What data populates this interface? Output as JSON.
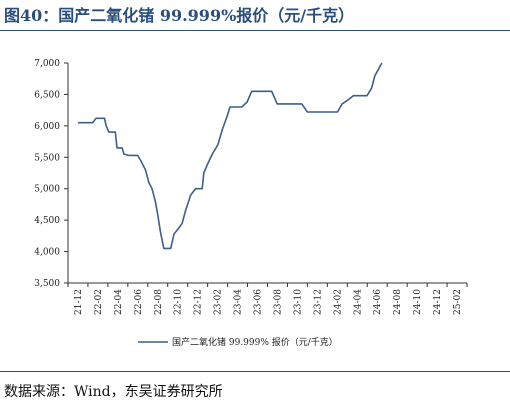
{
  "header": {
    "title": "图40：国产二氧化锗 99.999%报价（元/千克）"
  },
  "footer": {
    "source": "数据来源：Wind，东吴证券研究所"
  },
  "colors": {
    "line": "#3c5f8e",
    "title": "#2a4f7d"
  },
  "chart_data": {
    "type": "line",
    "title": "",
    "xlabel": "",
    "ylabel": "",
    "ylim": [
      3500,
      7000
    ],
    "yticks": [
      "3,500",
      "4,000",
      "4,500",
      "5,000",
      "5,500",
      "6,000",
      "6,500",
      "7,000"
    ],
    "categories": [
      "21-12",
      "22-02",
      "22-04",
      "22-06",
      "22-08",
      "22-10",
      "22-12",
      "23-02",
      "23-04",
      "23-06",
      "23-08",
      "23-10",
      "23-12",
      "24-02",
      "24-04",
      "24-06",
      "24-08",
      "24-10",
      "24-12",
      "25-02"
    ],
    "legend_position": "bottom",
    "series": [
      {
        "name": "国产二氧化锗 99.999% 报价（元/千克）",
        "points": [
          [
            "2021-12-01",
            6050
          ],
          [
            "2022-01-15",
            6050
          ],
          [
            "2022-01-25",
            6120
          ],
          [
            "2022-02-20",
            6120
          ],
          [
            "2022-02-25",
            6000
          ],
          [
            "2022-03-05",
            5900
          ],
          [
            "2022-03-25",
            5900
          ],
          [
            "2022-03-30",
            5650
          ],
          [
            "2022-04-15",
            5650
          ],
          [
            "2022-04-20",
            5550
          ],
          [
            "2022-05-05",
            5530
          ],
          [
            "2022-06-01",
            5530
          ],
          [
            "2022-06-10",
            5450
          ],
          [
            "2022-06-25",
            5300
          ],
          [
            "2022-07-05",
            5100
          ],
          [
            "2022-07-15",
            5000
          ],
          [
            "2022-07-25",
            4800
          ],
          [
            "2022-08-01",
            4600
          ],
          [
            "2022-08-10",
            4300
          ],
          [
            "2022-08-20",
            4050
          ],
          [
            "2022-09-10",
            4050
          ],
          [
            "2022-09-20",
            4280
          ],
          [
            "2022-10-01",
            4350
          ],
          [
            "2022-10-15",
            4450
          ],
          [
            "2022-10-25",
            4650
          ],
          [
            "2022-11-10",
            4900
          ],
          [
            "2022-11-25",
            5000
          ],
          [
            "2022-12-15",
            5000
          ],
          [
            "2022-12-20",
            5250
          ],
          [
            "2023-01-01",
            5400
          ],
          [
            "2023-01-15",
            5550
          ],
          [
            "2023-02-01",
            5700
          ],
          [
            "2023-02-15",
            5950
          ],
          [
            "2023-03-01",
            6150
          ],
          [
            "2023-03-10",
            6300
          ],
          [
            "2023-04-15",
            6300
          ],
          [
            "2023-05-01",
            6380
          ],
          [
            "2023-05-15",
            6550
          ],
          [
            "2023-07-15",
            6550
          ],
          [
            "2023-08-01",
            6350
          ],
          [
            "2023-10-15",
            6350
          ],
          [
            "2023-11-01",
            6220
          ],
          [
            "2024-02-01",
            6220
          ],
          [
            "2024-02-15",
            6350
          ],
          [
            "2024-03-01",
            6400
          ],
          [
            "2024-03-20",
            6480
          ],
          [
            "2024-05-01",
            6480
          ],
          [
            "2024-05-15",
            6600
          ],
          [
            "2024-05-25",
            6800
          ],
          [
            "2024-06-05",
            6900
          ],
          [
            "2024-06-15",
            7000
          ]
        ]
      }
    ]
  }
}
